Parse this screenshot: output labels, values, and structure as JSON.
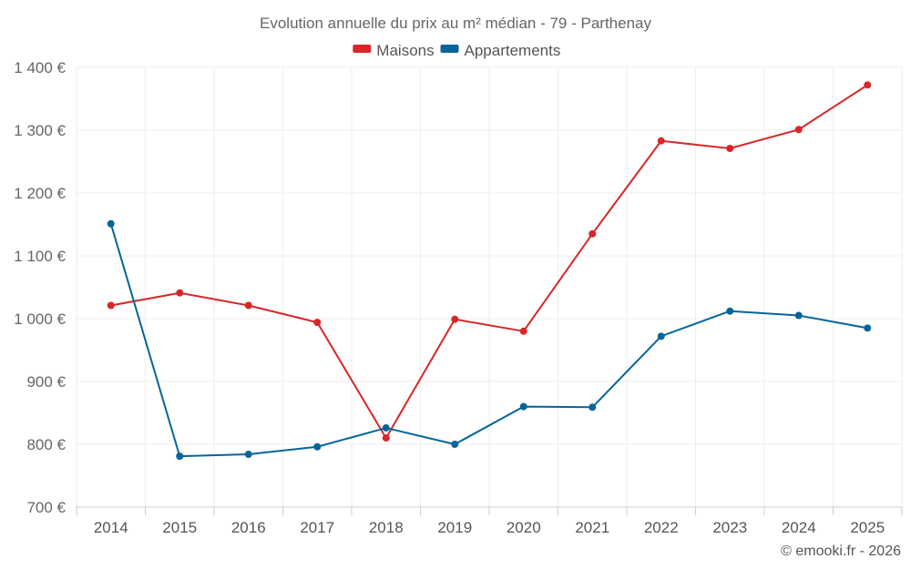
{
  "chart_data": {
    "type": "line",
    "title": "Evolution annuelle du prix au m² médian - 79 - Parthenay",
    "categories": [
      "2014",
      "2015",
      "2016",
      "2017",
      "2018",
      "2019",
      "2020",
      "2021",
      "2022",
      "2023",
      "2024",
      "2025"
    ],
    "series": [
      {
        "name": "Maisons",
        "color": "#d62728",
        "values": [
          1021,
          1041,
          1021,
          994,
          810,
          999,
          980,
          1135,
          1283,
          1271,
          1301,
          1372
        ]
      },
      {
        "name": "Appartements",
        "color": "#03659a",
        "values": [
          1151,
          781,
          784,
          796,
          826,
          800,
          860,
          859,
          972,
          1012,
          1005,
          985
        ]
      }
    ],
    "ylim": [
      700,
      1400
    ],
    "yticks": [
      700,
      800,
      900,
      1000,
      1100,
      1200,
      1300,
      1400
    ],
    "ytick_labels": [
      "700 €",
      "800 €",
      "900 €",
      "1 000 €",
      "1 100 €",
      "1 200 €",
      "1 300 €",
      "1 400 €"
    ],
    "xlabel": "",
    "ylabel": "",
    "grid": true,
    "legend_position": "top-center"
  },
  "credit": "© emooki.fr - 2026"
}
